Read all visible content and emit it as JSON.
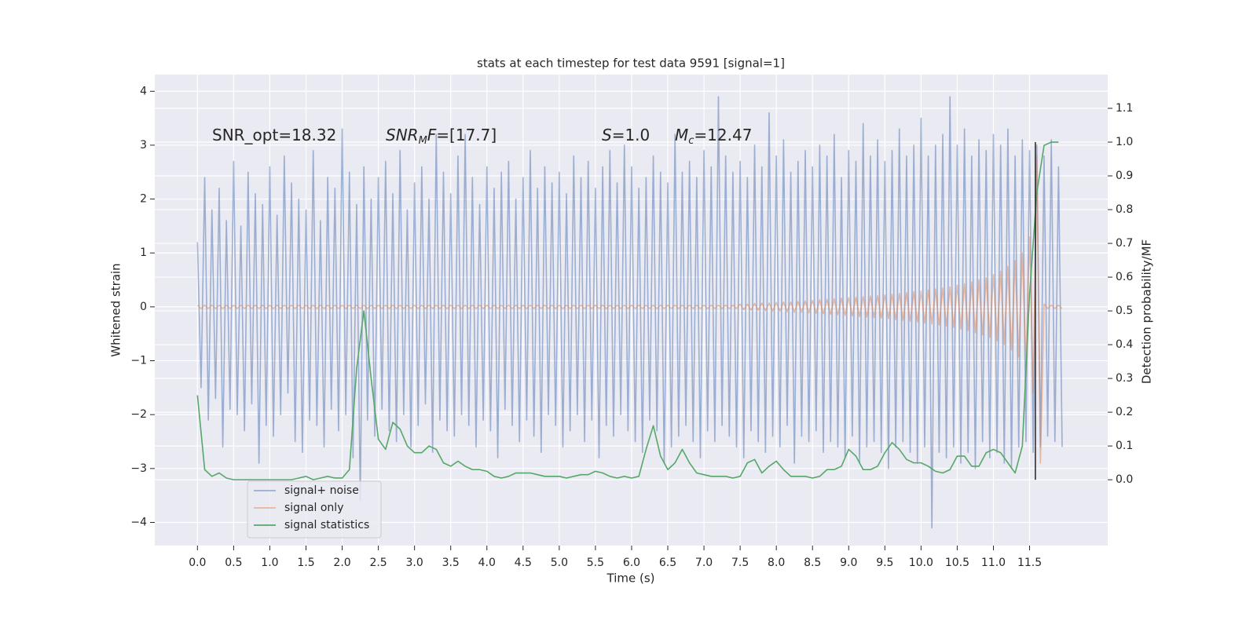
{
  "chart_data": {
    "type": "line",
    "title": "stats at each timestep for test data 9591 [signal=1]",
    "xlabel": "Time (s)",
    "ylabel": "Whitened strain",
    "y2label": "Detection probability/MF",
    "annotations": [
      {
        "parts": [
          {
            "text": "SNR_opt=18.32"
          }
        ]
      },
      {
        "parts": [
          {
            "text": "SNR",
            "style": "math"
          },
          {
            "text": "M",
            "style": "sub"
          },
          {
            "text": "F",
            "style": "math"
          },
          {
            "text": "=[17.7]"
          }
        ]
      },
      {
        "parts": [
          {
            "text": "S",
            "style": "math"
          },
          {
            "text": "=1.0"
          }
        ]
      },
      {
        "parts": [
          {
            "text": "M",
            "style": "math"
          },
          {
            "text": "c",
            "style": "sub"
          },
          {
            "text": "=12.47"
          }
        ]
      }
    ],
    "xlim": [
      -0.59,
      12.58
    ],
    "ylim": [
      -4.43,
      4.31
    ],
    "y2lim": [
      -0.195,
      1.2
    ],
    "xticks": [
      {
        "value": 0,
        "label": "0.0"
      },
      {
        "value": 0.5,
        "label": "0.5"
      },
      {
        "value": 1,
        "label": "1.0"
      },
      {
        "value": 1.5,
        "label": "1.5"
      },
      {
        "value": 2,
        "label": "2.0"
      },
      {
        "value": 2.5,
        "label": "2.5"
      },
      {
        "value": 3,
        "label": "3.0"
      },
      {
        "value": 3.5,
        "label": "3.5"
      },
      {
        "value": 4,
        "label": "4.0"
      },
      {
        "value": 4.5,
        "label": "4.5"
      },
      {
        "value": 5,
        "label": "5.0"
      },
      {
        "value": 5.5,
        "label": "5.5"
      },
      {
        "value": 6,
        "label": "6.0"
      },
      {
        "value": 6.5,
        "label": "6.5"
      },
      {
        "value": 7,
        "label": "7.0"
      },
      {
        "value": 7.5,
        "label": "7.5"
      },
      {
        "value": 8,
        "label": "8.0"
      },
      {
        "value": 8.5,
        "label": "8.5"
      },
      {
        "value": 9,
        "label": "9.0"
      },
      {
        "value": 9.5,
        "label": "9.5"
      },
      {
        "value": 10,
        "label": "10.0"
      },
      {
        "value": 10.5,
        "label": "10.5"
      },
      {
        "value": 11,
        "label": "11.0"
      },
      {
        "value": 11.5,
        "label": "11.5"
      }
    ],
    "yticks": [
      {
        "value": -4,
        "label": "−4"
      },
      {
        "value": -3,
        "label": "−3"
      },
      {
        "value": -2,
        "label": "−2"
      },
      {
        "value": -1,
        "label": "−1"
      },
      0,
      1,
      2,
      3,
      4
    ],
    "y2ticks": [
      {
        "value": 0,
        "label": "0.0"
      },
      0.1,
      0.2,
      0.3,
      0.4,
      0.5,
      0.6,
      0.7,
      0.8,
      0.9,
      {
        "value": 1,
        "label": "1.0"
      },
      1.1
    ],
    "grid": true,
    "legend": "lower left",
    "x": [
      0,
      0.05,
      0.1,
      0.15,
      0.2,
      0.25,
      0.3,
      0.35,
      0.4,
      0.45,
      0.5,
      0.55,
      0.6,
      0.65,
      0.7,
      0.75,
      0.8,
      0.85,
      0.9,
      0.95,
      1,
      1.05,
      1.1,
      1.15,
      1.2,
      1.25,
      1.3,
      1.35,
      1.4,
      1.45,
      1.5,
      1.55,
      1.6,
      1.65,
      1.7,
      1.75,
      1.8,
      1.85,
      1.9,
      1.95,
      2,
      2.05,
      2.1,
      2.15,
      2.2,
      2.25,
      2.3,
      2.35,
      2.4,
      2.45,
      2.5,
      2.55,
      2.6,
      2.65,
      2.7,
      2.75,
      2.8,
      2.85,
      2.9,
      2.95,
      3,
      3.05,
      3.1,
      3.15,
      3.2,
      3.25,
      3.3,
      3.35,
      3.4,
      3.45,
      3.5,
      3.55,
      3.6,
      3.65,
      3.7,
      3.75,
      3.8,
      3.85,
      3.9,
      3.95,
      4,
      4.05,
      4.1,
      4.15,
      4.2,
      4.25,
      4.3,
      4.35,
      4.4,
      4.45,
      4.5,
      4.55,
      4.6,
      4.65,
      4.7,
      4.75,
      4.8,
      4.85,
      4.9,
      4.95,
      5,
      5.05,
      5.1,
      5.15,
      5.2,
      5.25,
      5.3,
      5.35,
      5.4,
      5.45,
      5.5,
      5.55,
      5.6,
      5.65,
      5.7,
      5.75,
      5.8,
      5.85,
      5.9,
      5.95,
      6,
      6.05,
      6.1,
      6.15,
      6.2,
      6.25,
      6.3,
      6.35,
      6.4,
      6.45,
      6.5,
      6.55,
      6.6,
      6.65,
      6.7,
      6.75,
      6.8,
      6.85,
      6.9,
      6.95,
      7,
      7.05,
      7.1,
      7.15,
      7.2,
      7.25,
      7.3,
      7.35,
      7.4,
      7.45,
      7.5,
      7.55,
      7.6,
      7.65,
      7.7,
      7.75,
      7.8,
      7.85,
      7.9,
      7.95,
      8,
      8.05,
      8.1,
      8.15,
      8.2,
      8.25,
      8.3,
      8.35,
      8.4,
      8.45,
      8.5,
      8.55,
      8.6,
      8.65,
      8.7,
      8.75,
      8.8,
      8.85,
      8.9,
      8.95,
      9,
      9.05,
      9.1,
      9.15,
      9.2,
      9.25,
      9.3,
      9.35,
      9.4,
      9.45,
      9.5,
      9.55,
      9.6,
      9.65,
      9.7,
      9.75,
      9.8,
      9.85,
      9.9,
      9.95,
      10,
      10.05,
      10.1,
      10.15,
      10.2,
      10.25,
      10.3,
      10.35,
      10.4,
      10.45,
      10.5,
      10.55,
      10.6,
      10.65,
      10.7,
      10.75,
      10.8,
      10.85,
      10.9,
      10.95,
      11,
      11.05,
      11.1,
      11.15,
      11.2,
      11.25,
      11.3,
      11.35,
      11.4,
      11.45,
      11.5,
      11.55,
      11.6,
      11.65,
      11.7,
      11.75,
      11.8,
      11.85,
      11.9,
      11.95
    ],
    "series": [
      {
        "name": "signal+ noise",
        "color": "#4c72b0",
        "alpha": 0.5,
        "values": [
          1.2,
          -1.5,
          2.4,
          -2.1,
          1.8,
          -1.7,
          2.2,
          -2.6,
          1.6,
          -1.9,
          2.7,
          -2.0,
          1.5,
          -2.3,
          2.5,
          -1.8,
          2.1,
          -2.9,
          1.9,
          -2.2,
          2.6,
          -2.4,
          1.7,
          -2.0,
          2.8,
          -1.6,
          2.3,
          -2.5,
          2.0,
          -2.7,
          1.8,
          -2.1,
          2.9,
          -2.2,
          1.6,
          -2.6,
          2.4,
          -1.9,
          2.2,
          -2.3,
          3.3,
          -2.0,
          2.5,
          -2.8,
          1.9,
          -3.6,
          2.6,
          -2.1,
          2.0,
          -2.4,
          2.4,
          -1.9,
          2.7,
          -2.3,
          2.1,
          -2.5,
          2.9,
          -2.0,
          1.8,
          -2.6,
          2.3,
          -2.2,
          2.6,
          -1.8,
          2.0,
          -2.7,
          3.2,
          -2.1,
          2.5,
          -2.3,
          2.1,
          -2.4,
          2.8,
          -2.0,
          3.2,
          -2.2,
          2.4,
          -2.6,
          1.9,
          -2.1,
          2.6,
          -2.3,
          2.2,
          -2.8,
          2.5,
          -1.9,
          2.7,
          -2.2,
          2.0,
          -2.5,
          2.4,
          -2.1,
          2.9,
          -2.4,
          2.2,
          -2.7,
          2.6,
          -2.0,
          2.3,
          -2.2,
          2.5,
          -2.6,
          2.1,
          -2.3,
          2.8,
          -2.0,
          2.4,
          -2.5,
          2.7,
          -2.1,
          2.2,
          -2.8,
          2.6,
          -2.2,
          2.9,
          -2.4,
          2.3,
          -2.0,
          3.0,
          -2.3,
          2.6,
          -2.5,
          2.2,
          -2.7,
          2.4,
          -2.1,
          2.8,
          -2.3,
          2.5,
          -2.9,
          2.3,
          -2.6,
          3.2,
          -2.4,
          2.5,
          -2.2,
          2.7,
          -2.5,
          2.4,
          -2.8,
          2.9,
          -2.3,
          2.6,
          -2.5,
          3.9,
          -2.2,
          2.8,
          -2.4,
          2.5,
          -2.6,
          2.7,
          -2.8,
          2.4,
          -2.3,
          3.0,
          -2.5,
          2.6,
          -2.7,
          3.6,
          -2.4,
          2.8,
          -2.6,
          3.1,
          -2.2,
          2.5,
          -2.9,
          2.7,
          -2.4,
          2.9,
          -2.5,
          2.6,
          -2.3,
          3.0,
          -2.7,
          2.8,
          -2.5,
          3.2,
          -2.6,
          2.4,
          -2.8,
          2.9,
          -2.4,
          2.7,
          -2.9,
          3.4,
          -2.6,
          2.8,
          -2.5,
          3.1,
          -2.7,
          2.7,
          -3.0,
          2.9,
          -2.6,
          3.3,
          -2.5,
          2.8,
          -2.7,
          3.0,
          -2.9,
          3.5,
          -2.6,
          2.8,
          -4.1,
          3.0,
          -2.7,
          3.2,
          -2.8,
          3.9,
          -2.6,
          3.0,
          -2.9,
          3.3,
          -2.7,
          2.8,
          -3.0,
          3.1,
          -2.5,
          2.9,
          -2.8,
          3.2,
          -2.7,
          3.0,
          -2.9,
          3.3,
          -3.0,
          2.8,
          -2.6,
          3.1,
          -2.5,
          2.9,
          -2.7,
          3.0,
          -2.6,
          2.8,
          -2.4,
          3.1,
          -2.5,
          2.6,
          -2.6
        ]
      },
      {
        "name": "signal only",
        "color": "#dd8452",
        "alpha": 0.5,
        "values": [
          0.03,
          -0.03,
          0.03,
          -0.03,
          0.03,
          -0.03,
          0.03,
          -0.03,
          0.03,
          -0.03,
          0.03,
          -0.03,
          0.03,
          -0.03,
          0.03,
          -0.03,
          0.03,
          -0.03,
          0.03,
          -0.03,
          0.03,
          -0.03,
          0.03,
          -0.03,
          0.03,
          -0.03,
          0.03,
          -0.03,
          0.03,
          -0.03,
          0.03,
          -0.03,
          0.03,
          -0.03,
          0.03,
          -0.03,
          0.03,
          -0.03,
          0.03,
          -0.03,
          0.03,
          -0.03,
          0.03,
          -0.03,
          0.03,
          -0.03,
          0.03,
          -0.03,
          0.03,
          -0.03,
          0.03,
          -0.03,
          0.03,
          -0.03,
          0.03,
          -0.03,
          0.03,
          -0.03,
          0.03,
          -0.03,
          0.03,
          -0.03,
          0.03,
          -0.03,
          0.03,
          -0.03,
          0.03,
          -0.03,
          0.03,
          -0.03,
          0.03,
          -0.03,
          0.03,
          -0.03,
          0.03,
          -0.03,
          0.03,
          -0.03,
          0.03,
          -0.03,
          0.03,
          -0.03,
          0.03,
          -0.03,
          0.03,
          -0.03,
          0.03,
          -0.03,
          0.03,
          -0.03,
          0.03,
          -0.03,
          0.03,
          -0.03,
          0.03,
          -0.03,
          0.03,
          -0.03,
          0.03,
          -0.03,
          0.03,
          -0.03,
          0.03,
          -0.03,
          0.03,
          -0.03,
          0.03,
          -0.03,
          0.03,
          -0.03,
          0.03,
          -0.03,
          0.03,
          -0.03,
          0.03,
          -0.03,
          0.03,
          -0.03,
          0.03,
          -0.03,
          0.03,
          -0.03,
          0.03,
          -0.03,
          0.03,
          -0.03,
          0.03,
          -0.03,
          0.03,
          -0.03,
          0.03,
          -0.03,
          0.03,
          -0.03,
          0.03,
          -0.03,
          0.03,
          -0.03,
          0.03,
          -0.03,
          0.03,
          -0.03,
          0.03,
          -0.03,
          0.03,
          -0.03,
          0.03,
          -0.03,
          0.03,
          -0.03,
          0.05,
          -0.05,
          0.05,
          -0.06,
          0.06,
          -0.06,
          0.07,
          -0.07,
          0.07,
          -0.08,
          0.08,
          -0.08,
          0.09,
          -0.09,
          0.09,
          -0.1,
          0.1,
          -0.1,
          0.11,
          -0.11,
          0.12,
          -0.12,
          0.13,
          -0.13,
          0.14,
          -0.14,
          0.15,
          -0.15,
          0.16,
          -0.16,
          0.17,
          -0.17,
          0.18,
          -0.18,
          0.19,
          -0.19,
          0.2,
          -0.2,
          0.21,
          -0.21,
          0.22,
          -0.22,
          0.23,
          -0.24,
          0.25,
          -0.25,
          0.26,
          -0.27,
          0.28,
          -0.28,
          0.29,
          -0.3,
          0.31,
          -0.32,
          0.33,
          -0.34,
          0.35,
          -0.36,
          0.37,
          -0.38,
          0.4,
          -0.41,
          0.43,
          -0.44,
          0.46,
          -0.48,
          0.5,
          -0.52,
          0.54,
          -0.57,
          0.6,
          -0.63,
          0.66,
          -0.7,
          0.75,
          -0.8,
          0.86,
          -0.93,
          1.0,
          -1.1,
          1.3,
          -1.6,
          2.8,
          -2.9,
          0.05,
          -0.03,
          0.03,
          -0.03,
          0.03,
          -0.03
        ]
      },
      {
        "name": "signal statistics",
        "color": "#55a868",
        "alpha": 1,
        "axis": "y2",
        "x": [
          0,
          0.1,
          0.2,
          0.3,
          0.4,
          0.5,
          0.6,
          0.7,
          0.8,
          0.9,
          1,
          1.1,
          1.2,
          1.3,
          1.4,
          1.5,
          1.6,
          1.7,
          1.8,
          1.9,
          2,
          2.1,
          2.2,
          2.3,
          2.4,
          2.5,
          2.6,
          2.7,
          2.8,
          2.9,
          3,
          3.1,
          3.2,
          3.3,
          3.4,
          3.5,
          3.6,
          3.7,
          3.8,
          3.9,
          4,
          4.1,
          4.2,
          4.3,
          4.4,
          4.5,
          4.6,
          4.7,
          4.8,
          4.9,
          5,
          5.1,
          5.2,
          5.3,
          5.4,
          5.5,
          5.6,
          5.7,
          5.8,
          5.9,
          6,
          6.1,
          6.2,
          6.3,
          6.4,
          6.5,
          6.6,
          6.7,
          6.8,
          6.9,
          7,
          7.1,
          7.2,
          7.3,
          7.4,
          7.5,
          7.6,
          7.7,
          7.8,
          7.9,
          8,
          8.1,
          8.2,
          8.3,
          8.4,
          8.5,
          8.6,
          8.7,
          8.8,
          8.9,
          9,
          9.1,
          9.2,
          9.3,
          9.4,
          9.5,
          9.6,
          9.7,
          9.8,
          9.9,
          10,
          10.1,
          10.2,
          10.3,
          10.4,
          10.5,
          10.6,
          10.7,
          10.8,
          10.9,
          11,
          11.1,
          11.2,
          11.3,
          11.4,
          11.5,
          11.6,
          11.7,
          11.8,
          11.9
        ],
        "values": [
          0.25,
          0.03,
          0.01,
          0.02,
          0.005,
          0,
          0,
          0,
          0,
          0,
          0,
          0,
          0,
          0,
          0.005,
          0.01,
          0,
          0.005,
          0.01,
          0.005,
          0.005,
          0.03,
          0.33,
          0.5,
          0.3,
          0.12,
          0.09,
          0.17,
          0.15,
          0.1,
          0.08,
          0.08,
          0.1,
          0.09,
          0.05,
          0.04,
          0.055,
          0.04,
          0.03,
          0.03,
          0.025,
          0.01,
          0.005,
          0.01,
          0.02,
          0.02,
          0.02,
          0.015,
          0.01,
          0.01,
          0.01,
          0.005,
          0.01,
          0.015,
          0.015,
          0.025,
          0.02,
          0.01,
          0.005,
          0.01,
          0.005,
          0.01,
          0.09,
          0.16,
          0.07,
          0.03,
          0.05,
          0.09,
          0.05,
          0.02,
          0.015,
          0.01,
          0.01,
          0.01,
          0.005,
          0.01,
          0.05,
          0.06,
          0.02,
          0.04,
          0.055,
          0.03,
          0.01,
          0.01,
          0.01,
          0.005,
          0.01,
          0.03,
          0.03,
          0.04,
          0.09,
          0.07,
          0.03,
          0.03,
          0.04,
          0.08,
          0.11,
          0.09,
          0.06,
          0.05,
          0.05,
          0.04,
          0.025,
          0.02,
          0.03,
          0.07,
          0.07,
          0.04,
          0.04,
          0.08,
          0.09,
          0.08,
          0.05,
          0.02,
          0.1,
          0.55,
          0.85,
          0.99,
          1.0,
          1.0
        ]
      }
    ],
    "vline": {
      "x": 11.58,
      "y2": [
        0,
        1
      ],
      "color": "#222222"
    }
  }
}
